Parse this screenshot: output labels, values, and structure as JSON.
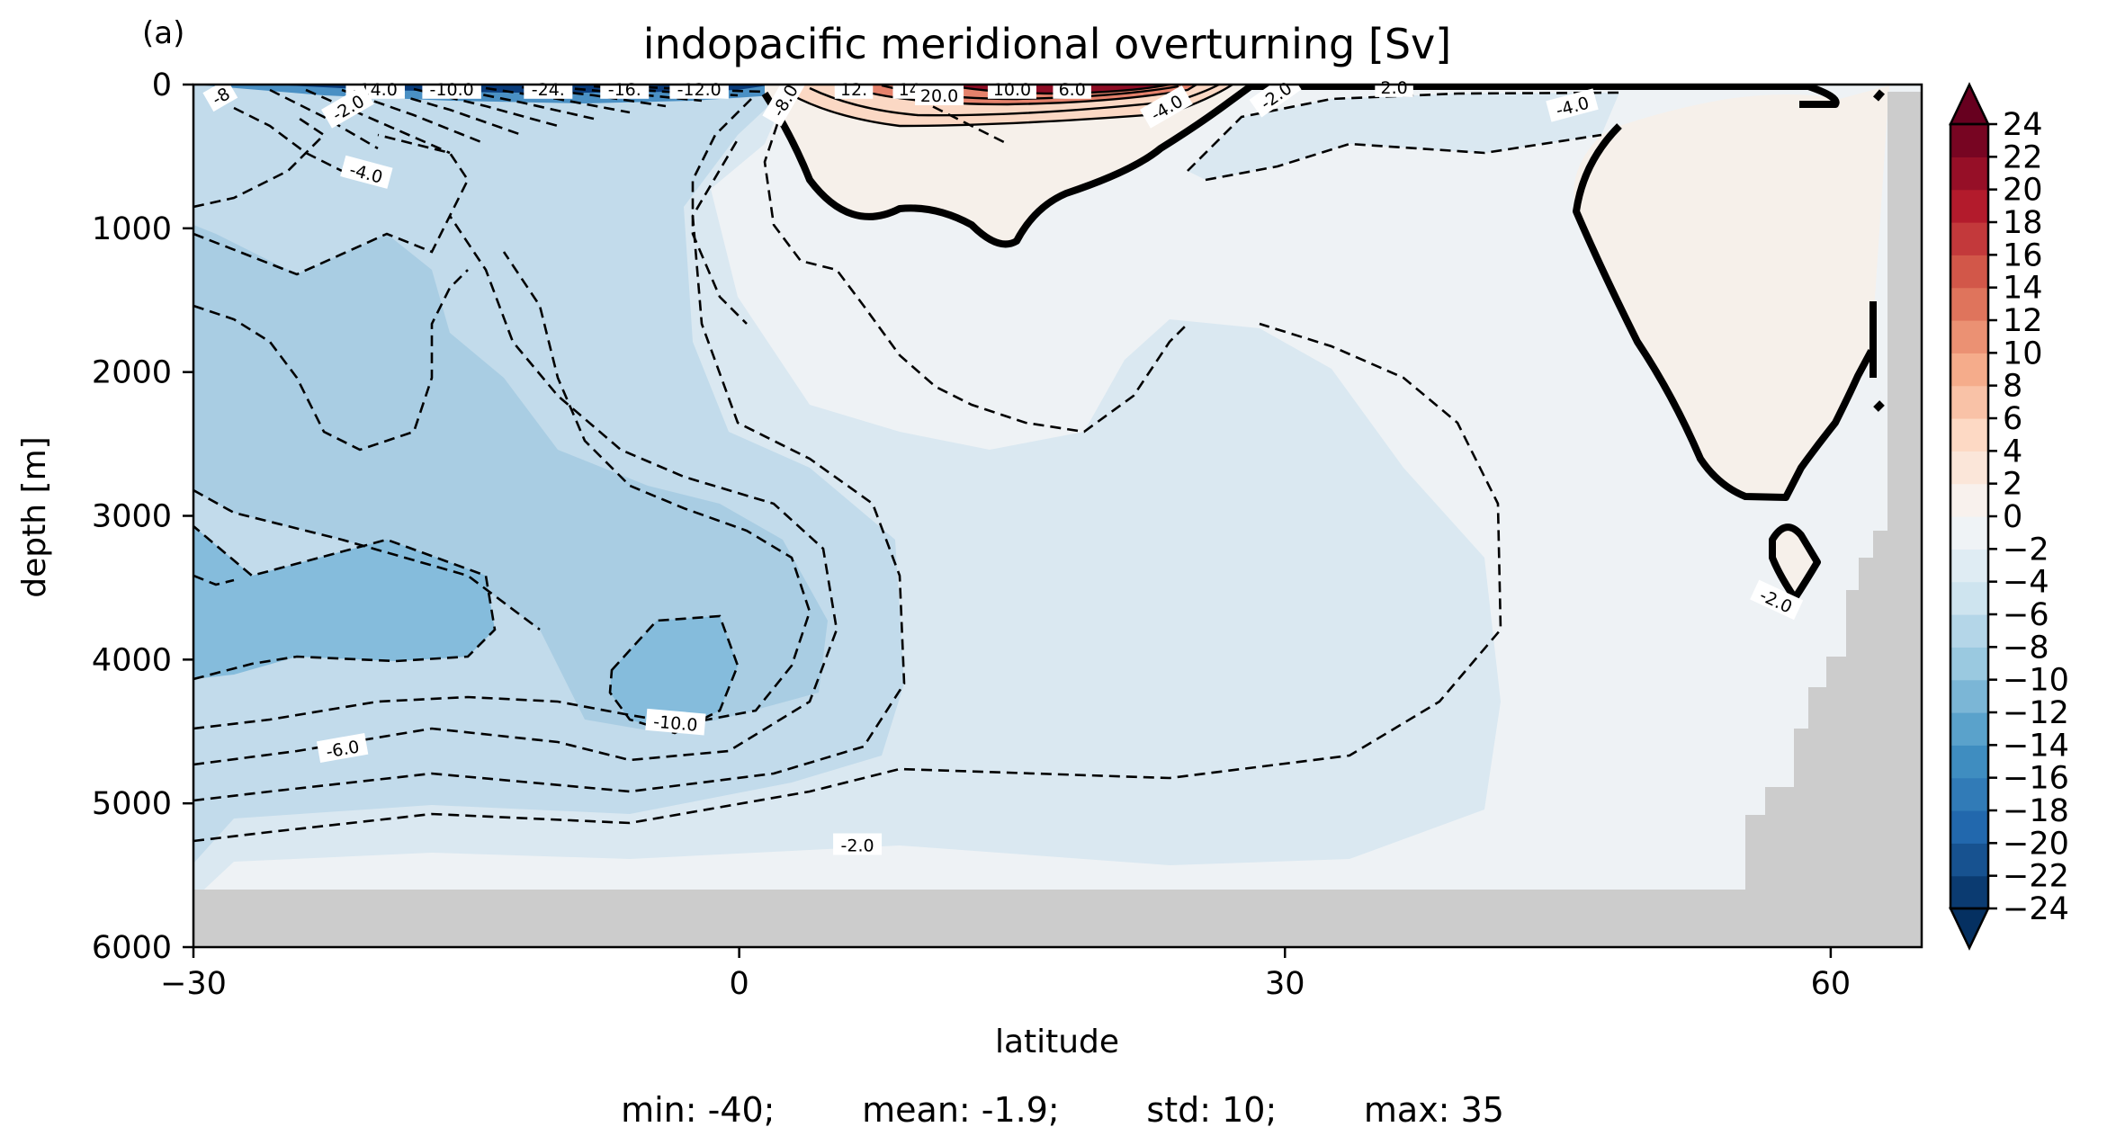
{
  "panel_label": "(a)",
  "chart_data": {
    "type": "contour",
    "title": "indopacific meridional overturning [Sv]",
    "xlabel": "latitude",
    "ylabel": "depth [m]",
    "xlim": [
      -30,
      65
    ],
    "ylim": [
      6000,
      0
    ],
    "xticks": [
      -30,
      0,
      30,
      60
    ],
    "xtick_labels": [
      "−30",
      "0",
      "30",
      "60"
    ],
    "yticks": [
      0,
      1000,
      2000,
      3000,
      4000,
      5000,
      6000
    ],
    "ytick_labels": [
      "0",
      "1000",
      "2000",
      "3000",
      "4000",
      "5000",
      "6000"
    ],
    "colorbar": {
      "levels": [
        -24,
        -22,
        -20,
        -18,
        -16,
        -14,
        -12,
        -10,
        -8,
        -6,
        -4,
        -2,
        0,
        2,
        4,
        6,
        8,
        10,
        12,
        14,
        16,
        18,
        20,
        22,
        24
      ],
      "tick_labels": [
        "−24",
        "−22",
        "−20",
        "−18",
        "−16",
        "−14",
        "−12",
        "−10",
        "−8",
        "−6",
        "−4",
        "−2",
        "0",
        "2",
        "4",
        "6",
        "8",
        "10",
        "12",
        "14",
        "16",
        "18",
        "20",
        "22",
        "24"
      ],
      "colormap": "RdBu_r",
      "extend": "both"
    },
    "contour_labels": [
      "-8",
      "-14.0",
      "-10.0",
      "-2.0",
      "-24.",
      "-16.",
      "-12.0",
      "-8.0",
      "12.",
      "14.",
      "20.0",
      "10.0",
      "6.0",
      "-4.0",
      "-4.0",
      "-2.0",
      "2.0",
      "-4.0",
      "-2.0",
      "-10.0",
      "-6.0",
      "-2.0"
    ],
    "colors": {
      "land": "#cccccc",
      "zero_contour": "#000000"
    }
  },
  "stats": {
    "min": "min: -40;",
    "mean": "mean: -1.9;",
    "std": "std: 10;",
    "max": "max: 35"
  }
}
